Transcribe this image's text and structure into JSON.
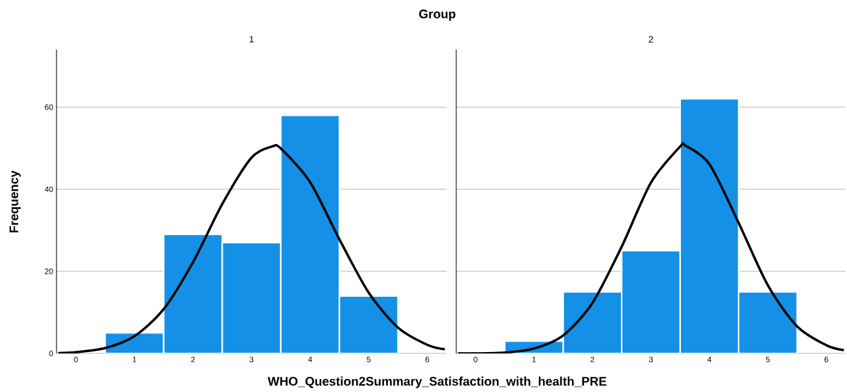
{
  "chart_data": [
    {
      "type": "histogram",
      "title": "Group",
      "subtitle": "1",
      "xlabel": "WHO_Question2Summary_Satisfaction_with_health_PRE",
      "ylabel": "Frequency",
      "bins": [
        0.5,
        1.5,
        2.5,
        3.5,
        4.5,
        5.5
      ],
      "values": [
        5,
        29,
        27,
        58,
        14
      ],
      "color": "#1490e6",
      "series": [
        {
          "type": "line",
          "color": "#000000",
          "x": [
            -0.3,
            0,
            0.5,
            1,
            1.5,
            2,
            2.5,
            3,
            3.35,
            3.5,
            4,
            4.5,
            5,
            5.5,
            6,
            6.3
          ],
          "values": [
            0.1,
            0.3,
            1.3,
            4.2,
            10.8,
            22.2,
            36.4,
            47.7,
            50.4,
            49.9,
            41.7,
            27.8,
            14.8,
            6.3,
            2.1,
            1.0
          ]
        }
      ],
      "xlim": [
        -0.33,
        6.33
      ],
      "ylim": [
        0,
        74
      ],
      "xticks": [
        0,
        1,
        2,
        3,
        4,
        5,
        6
      ],
      "yticks": [
        0,
        20,
        40,
        60
      ],
      "grid": "y"
    },
    {
      "type": "histogram",
      "subtitle": "2",
      "bins": [
        0.5,
        1.5,
        2.5,
        3.5,
        4.5,
        5.5
      ],
      "values": [
        3,
        15,
        25,
        62,
        15
      ],
      "color": "#1490e6",
      "series": [
        {
          "type": "line",
          "color": "#000000",
          "x": [
            -0.3,
            0,
            0.5,
            1,
            1.5,
            2,
            2.5,
            3,
            3.5,
            3.59,
            4,
            4.5,
            5,
            5.5,
            6,
            6.3
          ],
          "values": [
            0,
            0,
            0.2,
            1.2,
            4.4,
            12.3,
            26.0,
            41.6,
            50.4,
            50.6,
            46.1,
            31.8,
            16.6,
            6.6,
            2.0,
            0.8
          ]
        }
      ],
      "xlim": [
        -0.33,
        6.33
      ],
      "ylim": [
        0,
        74
      ],
      "xticks": [
        0,
        1,
        2,
        3,
        4,
        5,
        6
      ],
      "yticks": [
        0,
        20,
        40,
        60
      ],
      "grid": "y",
      "tick_labels": "x"
    }
  ]
}
